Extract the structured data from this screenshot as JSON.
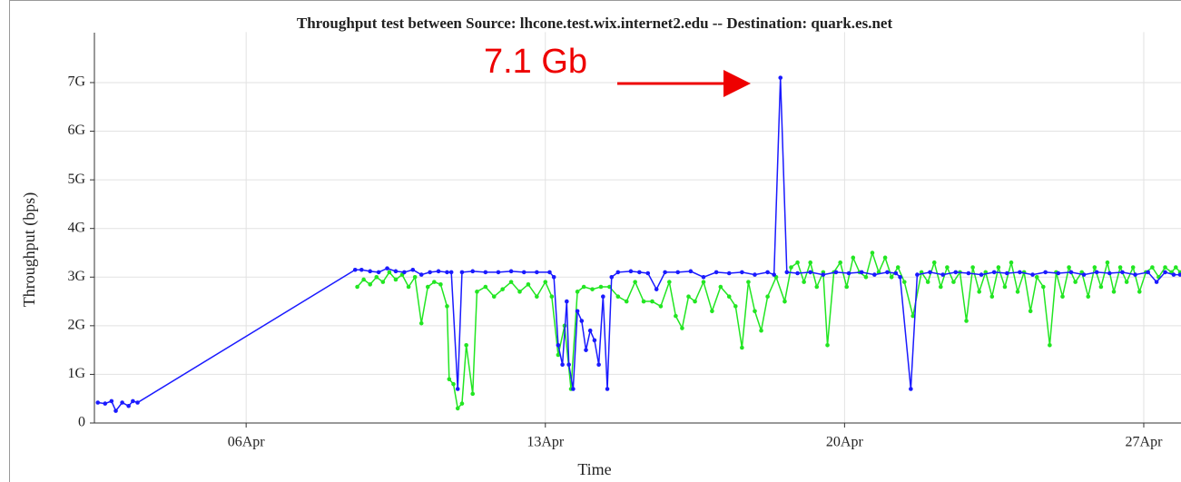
{
  "chart_data": {
    "type": "line",
    "title": "Throughput test between Source: lhcone.test.wix.internet2.edu -- Destination: quark.es.net",
    "xlabel": "Time",
    "ylabel": "Throughput (bps)",
    "annotation": "7.1 Gb",
    "xlim": [
      2.45,
      27.85
    ],
    "xticks": [
      {
        "value": 6,
        "label": "06Apr"
      },
      {
        "value": 13,
        "label": "13Apr"
      },
      {
        "value": 20,
        "label": "20Apr"
      },
      {
        "value": 27,
        "label": "27Apr"
      }
    ],
    "ylim": [
      0,
      8
    ],
    "yticks": [
      0,
      {
        "value": 1,
        "label": "1G"
      },
      {
        "value": 2,
        "label": "2G"
      },
      {
        "value": 3,
        "label": "3G"
      },
      {
        "value": 4,
        "label": "4G"
      },
      {
        "value": 5,
        "label": "5G"
      },
      {
        "value": 6,
        "label": "6G"
      },
      {
        "value": 7,
        "label": "7G"
      }
    ],
    "grid": true,
    "series": [
      {
        "color": "#22e622",
        "x": [
          8.6,
          8.75,
          8.9,
          9.05,
          9.2,
          9.35,
          9.5,
          9.65,
          9.8,
          9.95,
          10.1,
          10.25,
          10.4,
          10.55,
          10.7,
          10.75,
          10.85,
          10.95,
          11.05,
          11.15,
          11.3,
          11.4,
          11.6,
          11.8,
          12.0,
          12.2,
          12.4,
          12.6,
          12.8,
          13.0,
          13.15,
          13.3,
          13.45,
          13.6,
          13.75,
          13.9,
          14.1,
          14.3,
          14.5,
          14.7,
          14.9,
          15.1,
          15.3,
          15.5,
          15.7,
          15.9,
          16.05,
          16.2,
          16.35,
          16.5,
          16.7,
          16.9,
          17.1,
          17.3,
          17.45,
          17.6,
          17.75,
          17.9,
          18.05,
          18.2,
          18.4,
          18.6,
          18.75,
          18.9,
          19.05,
          19.2,
          19.35,
          19.5,
          19.6,
          19.75,
          19.9,
          20.05,
          20.2,
          20.35,
          20.5,
          20.65,
          20.8,
          20.95,
          21.1,
          21.25,
          21.4,
          21.6,
          21.8,
          21.95,
          22.1,
          22.25,
          22.4,
          22.55,
          22.7,
          22.85,
          23.0,
          23.15,
          23.3,
          23.45,
          23.6,
          23.75,
          23.9,
          24.05,
          24.2,
          24.35,
          24.5,
          24.65,
          24.8,
          24.95,
          25.1,
          25.25,
          25.4,
          25.55,
          25.7,
          25.85,
          26.0,
          26.15,
          26.3,
          26.45,
          26.6,
          26.75,
          26.9,
          27.05,
          27.2,
          27.35,
          27.5,
          27.65,
          27.75,
          27.85
        ],
        "values": [
          2.8,
          2.95,
          2.85,
          3.0,
          2.9,
          3.1,
          2.95,
          3.05,
          2.8,
          3.0,
          2.05,
          2.8,
          2.9,
          2.85,
          2.4,
          0.9,
          0.8,
          0.3,
          0.4,
          1.6,
          0.6,
          2.7,
          2.8,
          2.6,
          2.75,
          2.9,
          2.7,
          2.85,
          2.6,
          2.9,
          2.6,
          1.4,
          2.0,
          0.7,
          2.7,
          2.8,
          2.75,
          2.8,
          2.8,
          2.6,
          2.5,
          2.9,
          2.5,
          2.5,
          2.4,
          2.9,
          2.2,
          1.95,
          2.6,
          2.5,
          2.9,
          2.3,
          2.8,
          2.6,
          2.4,
          1.55,
          2.9,
          2.3,
          1.9,
          2.6,
          3.0,
          2.5,
          3.2,
          3.3,
          2.9,
          3.3,
          2.8,
          3.1,
          1.6,
          3.1,
          3.3,
          2.8,
          3.4,
          3.1,
          3.0,
          3.5,
          3.1,
          3.4,
          3.0,
          3.2,
          2.9,
          2.2,
          3.1,
          2.9,
          3.3,
          2.8,
          3.2,
          2.9,
          3.1,
          2.1,
          3.2,
          2.7,
          3.1,
          2.6,
          3.2,
          2.8,
          3.3,
          2.7,
          3.1,
          2.3,
          3.0,
          2.8,
          1.6,
          3.1,
          2.6,
          3.2,
          2.9,
          3.1,
          2.6,
          3.2,
          2.8,
          3.3,
          2.7,
          3.2,
          2.9,
          3.2,
          2.7,
          3.1,
          3.2,
          3.0,
          3.2,
          3.1,
          3.2,
          3.1
        ]
      },
      {
        "color": "#1a1aff",
        "x": [
          2.53,
          2.7,
          2.85,
          2.95,
          3.1,
          3.25,
          3.35,
          3.46,
          8.55,
          8.7,
          8.9,
          9.1,
          9.3,
          9.5,
          9.7,
          9.9,
          10.1,
          10.3,
          10.5,
          10.7,
          10.8,
          10.95,
          11.05,
          11.3,
          11.6,
          11.9,
          12.2,
          12.5,
          12.8,
          13.1,
          13.2,
          13.3,
          13.4,
          13.5,
          13.55,
          13.65,
          13.75,
          13.85,
          13.95,
          14.05,
          14.15,
          14.25,
          14.35,
          14.45,
          14.55,
          14.7,
          15.0,
          15.2,
          15.4,
          15.6,
          15.8,
          16.1,
          16.4,
          16.7,
          17.0,
          17.3,
          17.6,
          17.9,
          18.2,
          18.35,
          18.5,
          18.65,
          18.9,
          19.2,
          19.5,
          19.8,
          20.1,
          20.4,
          20.7,
          21.0,
          21.2,
          21.3,
          21.55,
          21.7,
          22.0,
          22.3,
          22.6,
          22.9,
          23.2,
          23.5,
          23.8,
          24.1,
          24.4,
          24.7,
          25.0,
          25.3,
          25.6,
          25.9,
          26.2,
          26.5,
          26.8,
          27.1,
          27.3,
          27.5,
          27.7,
          27.85
        ],
        "values": [
          0.42,
          0.4,
          0.45,
          0.25,
          0.42,
          0.35,
          0.45,
          0.42,
          3.15,
          3.15,
          3.12,
          3.1,
          3.18,
          3.12,
          3.1,
          3.15,
          3.05,
          3.1,
          3.12,
          3.1,
          3.1,
          0.7,
          3.1,
          3.12,
          3.1,
          3.1,
          3.12,
          3.1,
          3.1,
          3.1,
          3.0,
          1.6,
          1.2,
          2.5,
          1.2,
          0.7,
          2.3,
          2.1,
          1.5,
          1.9,
          1.7,
          1.2,
          2.6,
          0.7,
          3.0,
          3.1,
          3.12,
          3.1,
          3.08,
          2.75,
          3.1,
          3.1,
          3.12,
          3.0,
          3.1,
          3.08,
          3.1,
          3.05,
          3.1,
          3.05,
          7.1,
          3.1,
          3.08,
          3.1,
          3.05,
          3.1,
          3.08,
          3.1,
          3.05,
          3.1,
          3.08,
          3.0,
          0.7,
          3.05,
          3.1,
          3.05,
          3.1,
          3.08,
          3.05,
          3.1,
          3.08,
          3.1,
          3.05,
          3.1,
          3.08,
          3.1,
          3.05,
          3.1,
          3.08,
          3.1,
          3.05,
          3.1,
          2.9,
          3.1,
          3.05,
          3.05
        ]
      }
    ]
  }
}
